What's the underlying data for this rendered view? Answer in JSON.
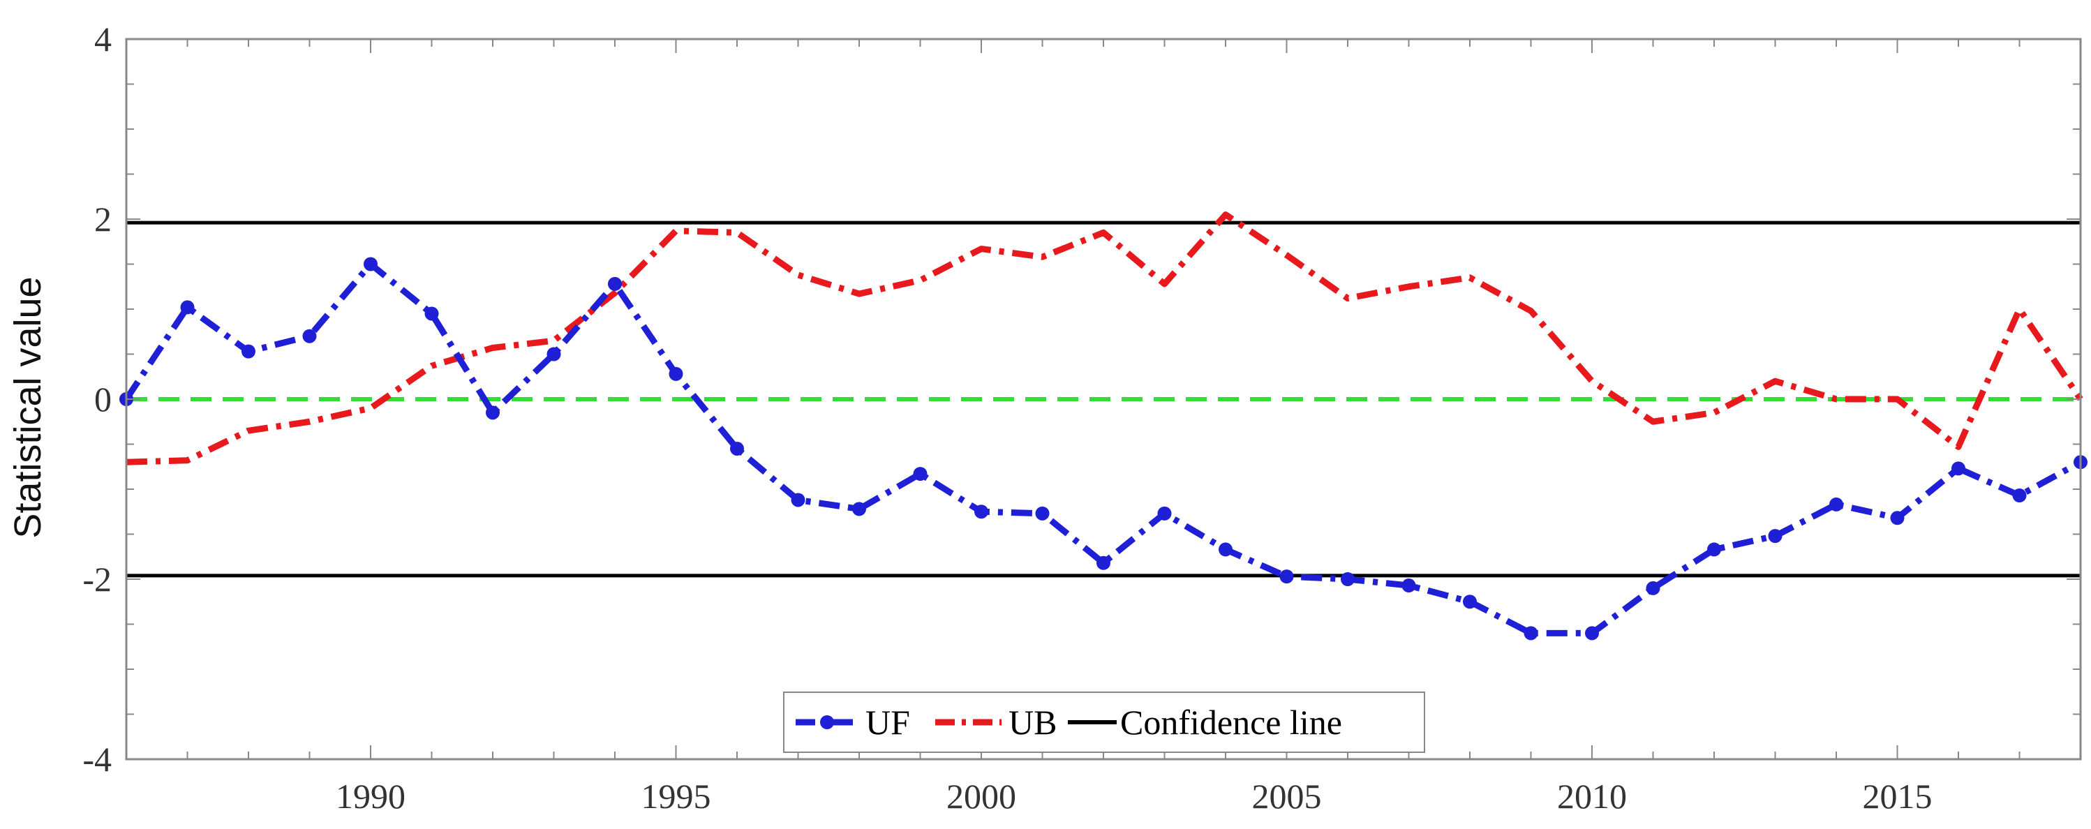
{
  "chart_data": {
    "type": "line",
    "title": "",
    "xlabel": "",
    "ylabel": "Statistical value",
    "xlim": [
      1986,
      2018
    ],
    "ylim": [
      -4,
      4
    ],
    "x_ticks": [
      1990,
      1995,
      2000,
      2005,
      2010,
      2015
    ],
    "y_ticks": [
      4,
      2,
      0,
      -2,
      -4
    ],
    "x_tick_labels": [
      "1990",
      "1995",
      "2000",
      "2005",
      "2010",
      "2015"
    ],
    "y_tick_labels": [
      "4",
      "2",
      "0",
      "-2",
      "-4"
    ],
    "legend_position": "bottom-center",
    "grid": false,
    "x": [
      1986,
      1987,
      1988,
      1989,
      1990,
      1991,
      1992,
      1993,
      1994,
      1995,
      1996,
      1997,
      1998,
      1999,
      2000,
      2001,
      2002,
      2003,
      2004,
      2005,
      2006,
      2007,
      2008,
      2009,
      2010,
      2011,
      2012,
      2013,
      2014,
      2015,
      2016,
      2017,
      2018
    ],
    "series": [
      {
        "name": "UF",
        "color": "#1f1fd6",
        "style": "dash-dot with dots",
        "values": [
          0.0,
          1.02,
          0.53,
          0.7,
          1.5,
          0.95,
          -0.15,
          0.5,
          1.28,
          0.28,
          -0.55,
          -1.12,
          -1.22,
          -0.83,
          -1.25,
          -1.27,
          -1.82,
          -1.27,
          -1.67,
          -1.97,
          -2.0,
          -2.07,
          -2.25,
          -2.6,
          -2.6,
          -2.1,
          -1.67,
          -1.52,
          -1.17,
          -1.32,
          -0.77,
          -1.07,
          -0.7
        ]
      },
      {
        "name": "UB",
        "color": "#e8191c",
        "style": "dash-dot",
        "values": [
          -0.7,
          -0.68,
          -0.35,
          -0.25,
          -0.1,
          0.37,
          0.57,
          0.65,
          1.18,
          1.87,
          1.85,
          1.38,
          1.17,
          1.32,
          1.67,
          1.58,
          1.85,
          1.28,
          2.05,
          1.6,
          1.12,
          1.25,
          1.35,
          0.98,
          0.2,
          -0.25,
          -0.15,
          0.2,
          0.0,
          0.0,
          -0.53,
          1.0,
          0.0
        ]
      }
    ],
    "reference_lines": [
      {
        "name": "Confidence line",
        "y": 1.96,
        "color": "#000000"
      },
      {
        "name": "Confidence line",
        "y": -1.96,
        "color": "#000000"
      },
      {
        "name": "zero",
        "y": 0,
        "color": "#33dd33"
      }
    ],
    "legend": [
      "UF",
      "UB",
      "Confidence line"
    ]
  }
}
